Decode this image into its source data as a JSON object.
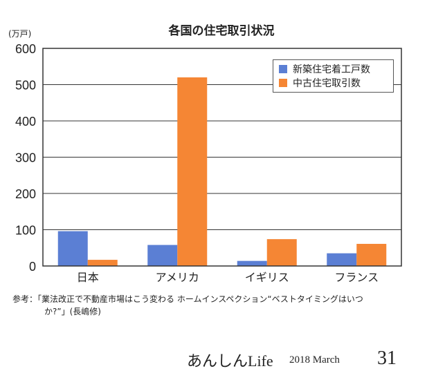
{
  "chart_data": {
    "type": "bar",
    "title": "各国の住宅取引状況",
    "ylabel": "(万戸)",
    "xlabel": "",
    "ylim": [
      0,
      600
    ],
    "yticks": [
      0,
      100,
      200,
      300,
      400,
      500,
      600
    ],
    "grid": true,
    "legend_position": "top-right",
    "categories": [
      "日本",
      "アメリカ",
      "イギリス",
      "フランス"
    ],
    "series": [
      {
        "name": "新築住宅着工戸数",
        "color": "#5b7fd4",
        "values": [
          96,
          58,
          14,
          35
        ]
      },
      {
        "name": "中古住宅取引数",
        "color": "#f58634",
        "values": [
          17,
          520,
          74,
          61
        ]
      }
    ]
  },
  "note": {
    "line1": "参考：「業法改正で不動産市場はこう変わる ホームインスペクション“ベストタイミングはいつ",
    "line2": "か?”」(長嶋修)"
  },
  "footer": {
    "magazine": "あんしんLife",
    "date": "2018 March",
    "page": "31"
  }
}
